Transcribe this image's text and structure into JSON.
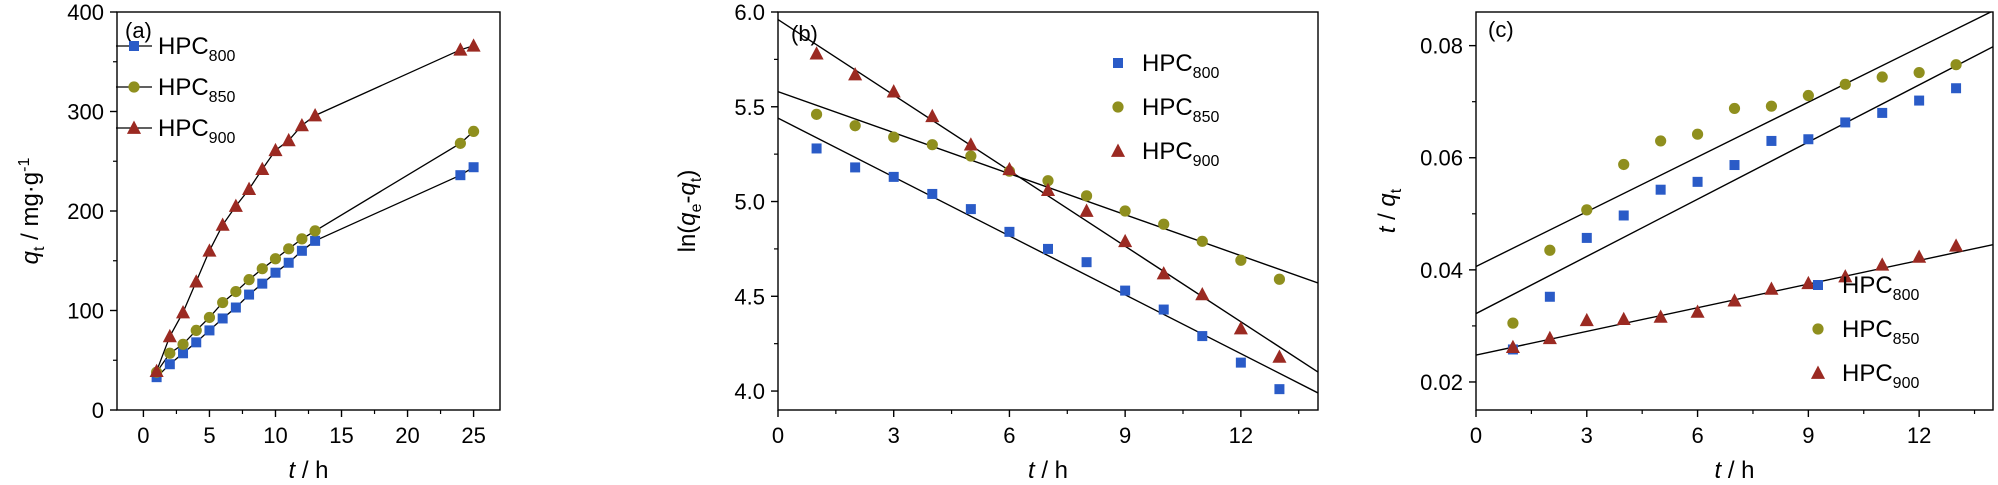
{
  "colors": {
    "HPC800": "#2a5bc7",
    "HPC850": "#8f8f1e",
    "HPC900": "#9b2a22",
    "line": "#000000",
    "frame": "#000000",
    "background": "#ffffff"
  },
  "chart_data": [
    {
      "id": "a",
      "panel_label": "(a)",
      "type": "line",
      "xlabel": {
        "var": "t",
        "unit": " / h"
      },
      "ylabel": {
        "var": "q",
        "sub": "t",
        "unit": " / mg·g",
        "sup": "-1"
      },
      "xlim": [
        -2,
        27
      ],
      "ylim": [
        0,
        400
      ],
      "xticks": [
        0,
        5,
        10,
        15,
        20,
        25
      ],
      "yticks": [
        0,
        100,
        200,
        300,
        400
      ],
      "grid": false,
      "legend": {
        "position": "top-left",
        "entries": [
          {
            "base": "HPC",
            "sub": "800",
            "marker": "square",
            "color_key": "HPC800"
          },
          {
            "base": "HPC",
            "sub": "850",
            "marker": "circle",
            "color_key": "HPC850"
          },
          {
            "base": "HPC",
            "sub": "900",
            "marker": "triangle",
            "color_key": "HPC900"
          }
        ]
      },
      "series": [
        {
          "name": "HPC800",
          "marker": "square",
          "connect": true,
          "points": [
            [
              1,
              33
            ],
            [
              2,
              46
            ],
            [
              3,
              57
            ],
            [
              4,
              68
            ],
            [
              5,
              80
            ],
            [
              6,
              92
            ],
            [
              7,
              103
            ],
            [
              8,
              116
            ],
            [
              9,
              127
            ],
            [
              10,
              138
            ],
            [
              11,
              148
            ],
            [
              12,
              160
            ],
            [
              13,
              170
            ],
            [
              24,
              236
            ],
            [
              25,
              244
            ]
          ]
        },
        {
          "name": "HPC850",
          "marker": "circle",
          "connect": true,
          "points": [
            [
              1,
              38
            ],
            [
              2,
              57
            ],
            [
              3,
              66
            ],
            [
              4,
              80
            ],
            [
              5,
              93
            ],
            [
              6,
              108
            ],
            [
              7,
              119
            ],
            [
              8,
              131
            ],
            [
              9,
              142
            ],
            [
              10,
              152
            ],
            [
              11,
              162
            ],
            [
              12,
              172
            ],
            [
              13,
              180
            ],
            [
              24,
              268
            ],
            [
              25,
              280
            ]
          ]
        },
        {
          "name": "HPC900",
          "marker": "triangle",
          "connect": true,
          "points": [
            [
              1,
              39
            ],
            [
              2,
              74
            ],
            [
              3,
              98
            ],
            [
              4,
              129
            ],
            [
              5,
              160
            ],
            [
              6,
              186
            ],
            [
              7,
              205
            ],
            [
              8,
              222
            ],
            [
              9,
              242
            ],
            [
              10,
              261
            ],
            [
              11,
              271
            ],
            [
              12,
              286
            ],
            [
              13,
              296
            ],
            [
              24,
              362
            ],
            [
              25,
              366
            ]
          ]
        }
      ]
    },
    {
      "id": "b",
      "panel_label": "(b)",
      "type": "scatter",
      "xlabel": {
        "var": "t",
        "unit": " / h"
      },
      "ylabel": {
        "pre": "ln(",
        "var1": "q",
        "sub1": "e",
        "mid": "-",
        "var2": "q",
        "sub2": "t",
        "post": ")"
      },
      "xlim": [
        0,
        14
      ],
      "ylim": [
        3.9,
        6.0
      ],
      "xticks": [
        0,
        3,
        6,
        9,
        12
      ],
      "yticks": [
        4.0,
        4.5,
        5.0,
        5.5,
        6.0
      ],
      "ytick_labels": [
        "4.0",
        "4.5",
        "5.0",
        "5.5",
        "6.0"
      ],
      "grid": false,
      "legend": {
        "position": "top-right",
        "entries": [
          {
            "base": "HPC",
            "sub": "800",
            "marker": "square",
            "color_key": "HPC800"
          },
          {
            "base": "HPC",
            "sub": "850",
            "marker": "circle",
            "color_key": "HPC850"
          },
          {
            "base": "HPC",
            "sub": "900",
            "marker": "triangle",
            "color_key": "HPC900"
          }
        ]
      },
      "series": [
        {
          "name": "HPC800",
          "marker": "square",
          "points": [
            [
              1,
              5.28
            ],
            [
              2,
              5.18
            ],
            [
              3,
              5.13
            ],
            [
              4,
              5.04
            ],
            [
              5,
              4.96
            ],
            [
              6,
              4.84
            ],
            [
              7,
              4.75
            ],
            [
              8,
              4.68
            ],
            [
              9,
              4.53
            ],
            [
              10,
              4.43
            ],
            [
              11,
              4.29
            ],
            [
              12,
              4.15
            ],
            [
              13,
              4.01
            ]
          ]
        },
        {
          "name": "HPC850",
          "marker": "circle",
          "points": [
            [
              1,
              5.46
            ],
            [
              2,
              5.4
            ],
            [
              3,
              5.34
            ],
            [
              4,
              5.3
            ],
            [
              5,
              5.24
            ],
            [
              6,
              5.16
            ],
            [
              7,
              5.11
            ],
            [
              8,
              5.03
            ],
            [
              9,
              4.95
            ],
            [
              10,
              4.88
            ],
            [
              11,
              4.79
            ],
            [
              12,
              4.69
            ],
            [
              13,
              4.59
            ]
          ]
        },
        {
          "name": "HPC900",
          "marker": "triangle",
          "points": [
            [
              1,
              5.78
            ],
            [
              2,
              5.67
            ],
            [
              3,
              5.58
            ],
            [
              4,
              5.45
            ],
            [
              5,
              5.3
            ],
            [
              6,
              5.17
            ],
            [
              7,
              5.06
            ],
            [
              8,
              4.95
            ],
            [
              9,
              4.79
            ],
            [
              10,
              4.62
            ],
            [
              11,
              4.51
            ],
            [
              12,
              4.33
            ],
            [
              13,
              4.18
            ]
          ]
        }
      ],
      "fits": [
        {
          "name": "HPC800",
          "x": [
            0,
            14
          ],
          "y": [
            5.44,
            3.99
          ]
        },
        {
          "name": "HPC850",
          "x": [
            0,
            14
          ],
          "y": [
            5.58,
            4.57
          ]
        },
        {
          "name": "HPC900",
          "x": [
            0,
            14
          ],
          "y": [
            5.96,
            4.1
          ]
        }
      ]
    },
    {
      "id": "c",
      "panel_label": "(c)",
      "type": "scatter",
      "xlabel": {
        "var": "t",
        "unit": " / h"
      },
      "ylabel": {
        "var1": "t",
        "mid": " / ",
        "var2": "q",
        "sub2": "t"
      },
      "xlim": [
        0,
        14
      ],
      "ylim": [
        0.015,
        0.086
      ],
      "xticks": [
        0,
        3,
        6,
        9,
        12
      ],
      "yticks": [
        0.02,
        0.04,
        0.06,
        0.08
      ],
      "ytick_labels": [
        "0.02",
        "0.04",
        "0.06",
        "0.08"
      ],
      "grid": false,
      "legend": {
        "position": "bottom-right",
        "entries": [
          {
            "base": "HPC",
            "sub": "800",
            "marker": "square",
            "color_key": "HPC800"
          },
          {
            "base": "HPC",
            "sub": "850",
            "marker": "circle",
            "color_key": "HPC850"
          },
          {
            "base": "HPC",
            "sub": "900",
            "marker": "triangle",
            "color_key": "HPC900"
          }
        ]
      },
      "series": [
        {
          "name": "HPC800",
          "marker": "square",
          "points": [
            [
              1,
              0.0258
            ],
            [
              2,
              0.0352
            ],
            [
              3,
              0.0457
            ],
            [
              4,
              0.0497
            ],
            [
              5,
              0.0543
            ],
            [
              6,
              0.0557
            ],
            [
              7,
              0.0587
            ],
            [
              8,
              0.063
            ],
            [
              9,
              0.0633
            ],
            [
              10,
              0.0663
            ],
            [
              11,
              0.068
            ],
            [
              12,
              0.0702
            ],
            [
              13,
              0.0724
            ]
          ]
        },
        {
          "name": "HPC850",
          "marker": "circle",
          "points": [
            [
              1,
              0.0305
            ],
            [
              2,
              0.0435
            ],
            [
              3,
              0.0507
            ],
            [
              4,
              0.0588
            ],
            [
              5,
              0.063
            ],
            [
              6,
              0.0642
            ],
            [
              7,
              0.0688
            ],
            [
              8,
              0.0692
            ],
            [
              9,
              0.0711
            ],
            [
              10,
              0.0731
            ],
            [
              11,
              0.0744
            ],
            [
              12,
              0.0752
            ],
            [
              13,
              0.0766
            ]
          ]
        },
        {
          "name": "HPC900",
          "marker": "triangle",
          "points": [
            [
              1,
              0.0262
            ],
            [
              2,
              0.0278
            ],
            [
              3,
              0.031
            ],
            [
              4,
              0.0312
            ],
            [
              5,
              0.0316
            ],
            [
              6,
              0.0325
            ],
            [
              7,
              0.0345
            ],
            [
              8,
              0.0366
            ],
            [
              9,
              0.0376
            ],
            [
              10,
              0.0388
            ],
            [
              11,
              0.0409
            ],
            [
              12,
              0.0423
            ],
            [
              13,
              0.0443
            ]
          ]
        }
      ],
      "fits": [
        {
          "name": "HPC800",
          "x": [
            0,
            14
          ],
          "y": [
            0.0322,
            0.0798
          ]
        },
        {
          "name": "HPC850",
          "x": [
            0,
            14
          ],
          "y": [
            0.0406,
            0.0862
          ]
        },
        {
          "name": "HPC900",
          "x": [
            0,
            14
          ],
          "y": [
            0.0248,
            0.0445
          ]
        }
      ]
    }
  ]
}
